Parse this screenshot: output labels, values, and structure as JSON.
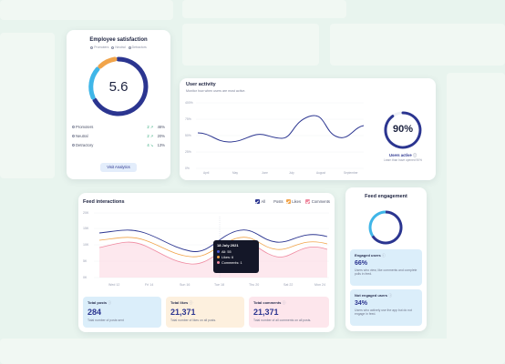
{
  "satisfaction": {
    "title": "Employee satisfaction",
    "legend": [
      "Promoters",
      "Neutral",
      "Detractors"
    ],
    "score": "5.6",
    "rows": [
      {
        "label": "Promoters",
        "count": "2",
        "pct": "46%"
      },
      {
        "label": "Neutral",
        "count": "2",
        "pct": "20%"
      },
      {
        "label": "Detractory",
        "count": "4",
        "pct": "13%"
      }
    ],
    "button": "Visit Analytics",
    "ring": {
      "promoters": 0.46,
      "neutral": 0.2,
      "detractors": 0.13
    }
  },
  "activity": {
    "title": "User activity",
    "subtitle": "Monitor how when users are most active.",
    "yticks": [
      "400%",
      "75%",
      "50%",
      "25%",
      "0%"
    ],
    "xticks": [
      "April",
      "May",
      "June",
      "July",
      "August",
      "September"
    ],
    "gauge_value": "90%",
    "gauge_fraction": 0.9,
    "gauge_label": "Users active",
    "gauge_note": "Learn than have opened 90%"
  },
  "feed": {
    "title": "Feed interactions",
    "filters": [
      {
        "label": "All",
        "color": "#2b3590"
      },
      {
        "label": "Posts",
        "color": "#f1a44a"
      },
      {
        "label": "Likes",
        "color": "#f1a44a"
      },
      {
        "label": "Comments",
        "color": "#ef8aa0"
      }
    ],
    "yticks": [
      "20K",
      "15K",
      "10K",
      "5K",
      "0K"
    ],
    "xticks": [
      "Wed 12",
      "Fri 14",
      "Sun 16",
      "Tue 18",
      "Thu 20",
      "Sat 22",
      "Mon 24"
    ],
    "tooltip": {
      "date": "18 July 2021",
      "items": [
        {
          "label": "All: 55",
          "color": "#4d5bd6"
        },
        {
          "label": "Likes: 6",
          "color": "#f1a44a"
        },
        {
          "label": "Comments: 1",
          "color": "#ef8aa0"
        }
      ]
    },
    "stats": [
      {
        "label": "Total posts",
        "value": "284",
        "desc": "Total number of posts sent",
        "bg": "#dbeefa",
        "color": "#2b3590"
      },
      {
        "label": "Total likes",
        "value": "21,371",
        "desc": "Total number of likes on all posts.",
        "bg": "#fdf0de",
        "color": "#2b3590"
      },
      {
        "label": "Total comments",
        "value": "21,371",
        "desc": "Total number of all comments on all posts.",
        "bg": "#fde6ec",
        "color": "#2b3590"
      }
    ]
  },
  "engagement": {
    "title": "Feed engagement",
    "ring_fraction": 0.66,
    "engaged": {
      "label": "Engaged users",
      "value": "66%",
      "desc": "Users who view, like comments and complete polls in feed."
    },
    "not_engaged": {
      "label": "Not engaged users",
      "value": "34%",
      "desc": "Users who actively use the app but do not engage in feed."
    }
  },
  "colors": {
    "navy": "#2b3590",
    "blue": "#2f7fe0",
    "cyan": "#3fb6e8",
    "orange": "#f1a44a",
    "pink": "#ef8aa0",
    "green": "#2fa87a"
  }
}
